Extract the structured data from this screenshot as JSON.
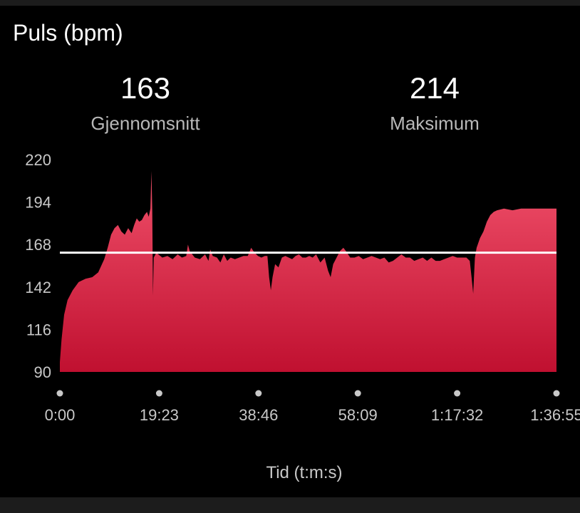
{
  "title": "Puls (bpm)",
  "stats": [
    {
      "value": "163",
      "label": "Gjennomsnitt"
    },
    {
      "value": "214",
      "label": "Maksimum"
    }
  ],
  "colors": {
    "area_top": "#f0506a",
    "area_bottom": "#c01030",
    "reference_line": "#ffffff"
  },
  "chart_data": {
    "type": "area",
    "xlabel": "Tid (t:m:s)",
    "ylabel": "",
    "ylim": [
      90,
      220
    ],
    "yticks": [
      220,
      194,
      168,
      142,
      116,
      90
    ],
    "xlim": [
      0,
      5815
    ],
    "xticks": [
      {
        "t": 0,
        "label": "0:00"
      },
      {
        "t": 1163,
        "label": "19:23"
      },
      {
        "t": 2326,
        "label": "38:46"
      },
      {
        "t": 3489,
        "label": "58:09"
      },
      {
        "t": 4652,
        "label": "1:17:32"
      },
      {
        "t": 5815,
        "label": "1:36:55"
      }
    ],
    "reference_line": 163,
    "series": [
      {
        "points": [
          [
            0,
            96
          ],
          [
            20,
            110
          ],
          [
            50,
            125
          ],
          [
            90,
            134
          ],
          [
            150,
            140
          ],
          [
            220,
            145
          ],
          [
            300,
            147
          ],
          [
            380,
            148
          ],
          [
            450,
            151
          ],
          [
            520,
            159
          ],
          [
            560,
            166
          ],
          [
            600,
            174
          ],
          [
            640,
            178
          ],
          [
            680,
            180
          ],
          [
            720,
            176
          ],
          [
            760,
            174
          ],
          [
            800,
            178
          ],
          [
            840,
            175
          ],
          [
            870,
            180
          ],
          [
            900,
            184
          ],
          [
            930,
            182
          ],
          [
            960,
            183
          ],
          [
            990,
            186
          ],
          [
            1020,
            188
          ],
          [
            1040,
            185
          ],
          [
            1060,
            190
          ],
          [
            1072,
            213
          ],
          [
            1082,
            188
          ],
          [
            1090,
            137
          ],
          [
            1100,
            160
          ],
          [
            1130,
            163
          ],
          [
            1200,
            160
          ],
          [
            1260,
            161
          ],
          [
            1320,
            159
          ],
          [
            1380,
            162
          ],
          [
            1430,
            160
          ],
          [
            1480,
            161
          ],
          [
            1500,
            168
          ],
          [
            1520,
            164
          ],
          [
            1580,
            160
          ],
          [
            1640,
            159
          ],
          [
            1700,
            162
          ],
          [
            1740,
            158
          ],
          [
            1760,
            165
          ],
          [
            1790,
            161
          ],
          [
            1840,
            160
          ],
          [
            1880,
            157
          ],
          [
            1920,
            162
          ],
          [
            1960,
            158
          ],
          [
            2000,
            160
          ],
          [
            2050,
            159
          ],
          [
            2100,
            160
          ],
          [
            2150,
            161
          ],
          [
            2200,
            161
          ],
          [
            2240,
            166
          ],
          [
            2280,
            163
          ],
          [
            2320,
            161
          ],
          [
            2360,
            160
          ],
          [
            2400,
            161
          ],
          [
            2430,
            161
          ],
          [
            2450,
            148
          ],
          [
            2470,
            140
          ],
          [
            2490,
            148
          ],
          [
            2520,
            156
          ],
          [
            2560,
            154
          ],
          [
            2600,
            160
          ],
          [
            2640,
            161
          ],
          [
            2680,
            160
          ],
          [
            2720,
            159
          ],
          [
            2760,
            161
          ],
          [
            2800,
            162
          ],
          [
            2840,
            160
          ],
          [
            2880,
            160
          ],
          [
            2920,
            161
          ],
          [
            2960,
            160
          ],
          [
            3000,
            162
          ],
          [
            3050,
            157
          ],
          [
            3100,
            160
          ],
          [
            3140,
            152
          ],
          [
            3170,
            148
          ],
          [
            3200,
            156
          ],
          [
            3240,
            160
          ],
          [
            3280,
            164
          ],
          [
            3320,
            166
          ],
          [
            3350,
            164
          ],
          [
            3400,
            160
          ],
          [
            3450,
            160
          ],
          [
            3500,
            161
          ],
          [
            3550,
            159
          ],
          [
            3600,
            160
          ],
          [
            3650,
            161
          ],
          [
            3700,
            160
          ],
          [
            3750,
            159
          ],
          [
            3800,
            160
          ],
          [
            3850,
            157
          ],
          [
            3900,
            158
          ],
          [
            3950,
            160
          ],
          [
            4000,
            162
          ],
          [
            4050,
            160
          ],
          [
            4100,
            160
          ],
          [
            4150,
            158
          ],
          [
            4200,
            159
          ],
          [
            4250,
            160
          ],
          [
            4300,
            158
          ],
          [
            4350,
            160
          ],
          [
            4400,
            158
          ],
          [
            4450,
            158
          ],
          [
            4500,
            159
          ],
          [
            4550,
            160
          ],
          [
            4600,
            161
          ],
          [
            4650,
            160
          ],
          [
            4700,
            160
          ],
          [
            4760,
            160
          ],
          [
            4800,
            158
          ],
          [
            4825,
            146
          ],
          [
            4840,
            138
          ],
          [
            4860,
            160
          ],
          [
            4880,
            166
          ],
          [
            4920,
            172
          ],
          [
            4960,
            176
          ],
          [
            5000,
            182
          ],
          [
            5040,
            186
          ],
          [
            5080,
            188
          ],
          [
            5120,
            189
          ],
          [
            5200,
            190
          ],
          [
            5300,
            189
          ],
          [
            5400,
            190
          ],
          [
            5500,
            190
          ],
          [
            5600,
            190
          ],
          [
            5700,
            190
          ],
          [
            5815,
            190
          ]
        ]
      }
    ]
  }
}
